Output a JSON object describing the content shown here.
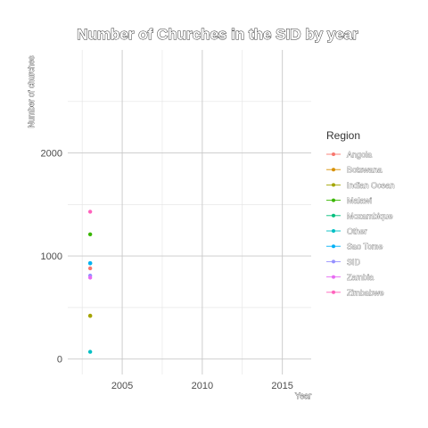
{
  "chart_data": {
    "type": "scatter",
    "title": "Number of Churches in the SID by year",
    "xlabel": "Year",
    "ylabel": "Number of churches",
    "xlim": [
      2001.6,
      2016.8
    ],
    "ylim": [
      -150,
      3000
    ],
    "x_ticks": [
      2005,
      2010,
      2015
    ],
    "y_ticks": [
      0,
      1000,
      2000
    ],
    "x_minor": [
      2002.5,
      2007.5,
      2012.5
    ],
    "y_minor": [
      500,
      1500,
      2500
    ],
    "legend_title": "Region",
    "legend_position": "right",
    "series": [
      {
        "name": "Angola",
        "color": "#F8766D",
        "x": [
          2003
        ],
        "y": [
          880
        ]
      },
      {
        "name": "Botswana",
        "color": "#D89000",
        "x": [
          2003
        ],
        "y": [
          420
        ]
      },
      {
        "name": "Indian Ocean",
        "color": "#A3A500",
        "x": [
          2003
        ],
        "y": [
          420
        ]
      },
      {
        "name": "Malawi",
        "color": "#39B600",
        "x": [
          2003
        ],
        "y": [
          1210
        ]
      },
      {
        "name": "Mozambique",
        "color": "#00BF7D",
        "x": [
          2003
        ],
        "y": [
          930
        ]
      },
      {
        "name": "Other",
        "color": "#00BFC4",
        "x": [
          2003
        ],
        "y": [
          70
        ]
      },
      {
        "name": "Sao Tome",
        "color": "#00B0F6",
        "x": [
          2003
        ],
        "y": [
          930
        ]
      },
      {
        "name": "SID",
        "color": "#9590FF",
        "x": [
          2003
        ],
        "y": [
          810
        ]
      },
      {
        "name": "Zambia",
        "color": "#E76BF3",
        "x": [
          2003
        ],
        "y": [
          790
        ]
      },
      {
        "name": "Zimbabwe",
        "color": "#FF62BC",
        "x": [
          2003
        ],
        "y": [
          1430
        ]
      }
    ]
  }
}
